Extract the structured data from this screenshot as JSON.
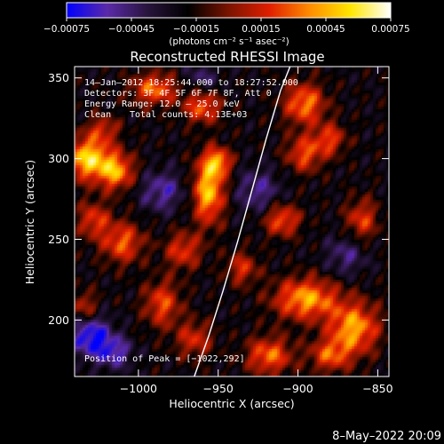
{
  "chart_data": {
    "type": "heatmap",
    "title": "Reconstructed RHESSI Image",
    "xlabel": "Heliocentric X (arcsec)",
    "ylabel": "Heliocentric Y (arcsec)",
    "xlim": [
      -1040,
      -843
    ],
    "ylim": [
      165,
      357
    ],
    "x_ticks": [
      -1000,
      -950,
      -900,
      -850
    ],
    "x_tick_labels": [
      "−1000",
      "−950",
      "−900",
      "−850"
    ],
    "y_ticks": [
      200,
      250,
      300,
      350
    ],
    "y_tick_labels": [
      "200",
      "250",
      "300",
      "350"
    ],
    "colorbar": {
      "range": [
        -0.00075,
        0.00075
      ],
      "ticks": [
        -0.00075,
        -0.00045,
        -0.00015,
        0.00015,
        0.00045,
        0.00075
      ],
      "tick_labels": [
        "−0.00075",
        "−0.00045",
        "−0.00015",
        "0.00015",
        "0.00045",
        "0.00075"
      ],
      "units": "(photons cm⁻² s⁻¹ asec⁻²)",
      "colors": [
        "#0000ff",
        "#5a2aa8",
        "#28143c",
        "#000000",
        "#7a1400",
        "#e01e00",
        "#ff8c00",
        "#ffe600",
        "#ffffff"
      ]
    },
    "annotations": {
      "time_range": "14–Jan–2012 18:25:44.000 to 18:27:52.000",
      "detectors": "Detectors: 3F 4F 5F 6F 7F 8F, Att 0",
      "energy": "Energy Range: 12.0 – 25.0 keV",
      "clean_label": "Clean",
      "total_counts": "Total counts: 4.13E+03",
      "peak": "Position of Peak = [−1022,292]"
    },
    "peak_position": [
      -1022,
      292
    ],
    "limb_curve": {
      "color": "#ffffff",
      "x": [
        -965,
        -956,
        -947,
        -938,
        -929,
        -920,
        -911,
        -905
      ],
      "y": [
        165,
        190,
        218,
        248,
        280,
        312,
        342,
        357
      ]
    },
    "blobs": [
      {
        "x": -1032,
        "y": 300,
        "amp": 1.0,
        "sx": 10,
        "sy": 9
      },
      {
        "x": -1014,
        "y": 292,
        "amp": 0.8,
        "sx": 8,
        "sy": 8
      },
      {
        "x": -956,
        "y": 280,
        "amp": 0.95,
        "sx": 7,
        "sy": 14
      },
      {
        "x": -950,
        "y": 298,
        "amp": 0.7,
        "sx": 6,
        "sy": 6
      },
      {
        "x": -990,
        "y": 343,
        "amp": 0.7,
        "sx": 10,
        "sy": 7
      },
      {
        "x": -960,
        "y": 332,
        "amp": 0.65,
        "sx": 8,
        "sy": 7
      },
      {
        "x": -896,
        "y": 334,
        "amp": 0.75,
        "sx": 9,
        "sy": 9
      },
      {
        "x": -896,
        "y": 303,
        "amp": 0.6,
        "sx": 8,
        "sy": 8
      },
      {
        "x": -880,
        "y": 312,
        "amp": 0.55,
        "sx": 7,
        "sy": 7
      },
      {
        "x": -910,
        "y": 262,
        "amp": 0.65,
        "sx": 8,
        "sy": 7
      },
      {
        "x": -860,
        "y": 262,
        "amp": 0.55,
        "sx": 7,
        "sy": 9
      },
      {
        "x": -895,
        "y": 213,
        "amp": 0.85,
        "sx": 14,
        "sy": 9
      },
      {
        "x": -865,
        "y": 195,
        "amp": 0.85,
        "sx": 11,
        "sy": 11
      },
      {
        "x": -918,
        "y": 178,
        "amp": 0.7,
        "sx": 10,
        "sy": 8
      },
      {
        "x": -880,
        "y": 178,
        "amp": 0.6,
        "sx": 9,
        "sy": 7
      },
      {
        "x": -1010,
        "y": 248,
        "amp": 0.65,
        "sx": 9,
        "sy": 9
      },
      {
        "x": -1028,
        "y": 262,
        "amp": 0.55,
        "sx": 7,
        "sy": 8
      },
      {
        "x": -972,
        "y": 243,
        "amp": 0.55,
        "sx": 8,
        "sy": 8
      },
      {
        "x": -985,
        "y": 210,
        "amp": 0.6,
        "sx": 8,
        "sy": 10
      },
      {
        "x": -965,
        "y": 188,
        "amp": 0.5,
        "sx": 8,
        "sy": 8
      },
      {
        "x": -935,
        "y": 232,
        "amp": 0.5,
        "sx": 7,
        "sy": 7
      },
      {
        "x": -1034,
        "y": 208,
        "amp": 0.45,
        "sx": 6,
        "sy": 7
      },
      {
        "x": -1022,
        "y": 318,
        "amp": 0.45,
        "sx": 7,
        "sy": 6
      },
      {
        "x": -1030,
        "y": 190,
        "amp": -0.7,
        "sx": 9,
        "sy": 9
      },
      {
        "x": -1015,
        "y": 180,
        "amp": -0.5,
        "sx": 8,
        "sy": 7
      },
      {
        "x": -985,
        "y": 280,
        "amp": -0.45,
        "sx": 10,
        "sy": 9
      },
      {
        "x": -925,
        "y": 280,
        "amp": -0.4,
        "sx": 10,
        "sy": 10
      },
      {
        "x": -870,
        "y": 240,
        "amp": -0.35,
        "sx": 9,
        "sy": 9
      },
      {
        "x": -960,
        "y": 350,
        "amp": -0.3,
        "sx": 8,
        "sy": 6
      }
    ]
  },
  "footer": {
    "timestamp": "8–May–2022 20:09"
  }
}
